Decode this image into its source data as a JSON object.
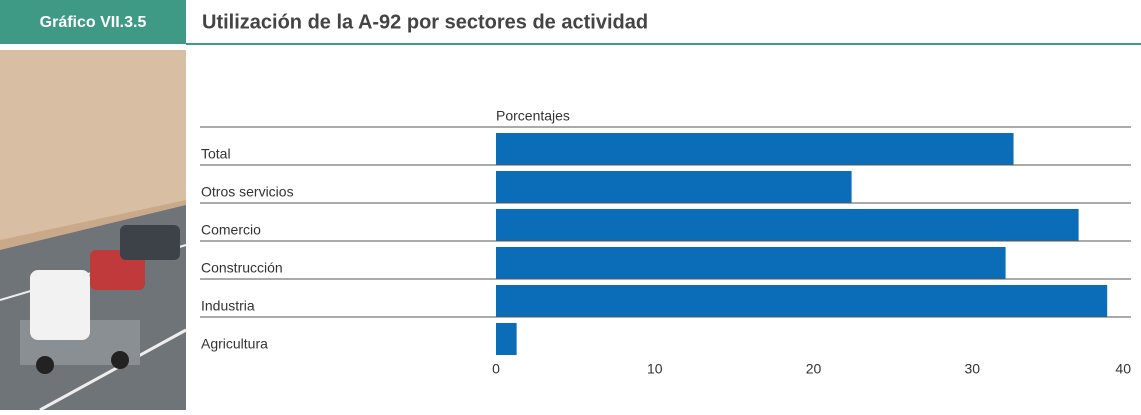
{
  "chart_data": {
    "type": "bar",
    "orientation": "horizontal",
    "figure_label": "Gráfico VII.3.5",
    "title": "Utilización de la A-92 por sectores de actividad",
    "x_label": "Porcentajes",
    "categories": [
      "Total",
      "Otros servicios",
      "Comercio",
      "Construcción",
      "Industria",
      "Agricultura"
    ],
    "values": [
      32.6,
      22.4,
      36.7,
      32.1,
      38.5,
      1.3
    ],
    "color": "#0b6db7",
    "xlim": [
      0,
      40
    ],
    "xticks": [
      0,
      10,
      20,
      30,
      40
    ]
  }
}
